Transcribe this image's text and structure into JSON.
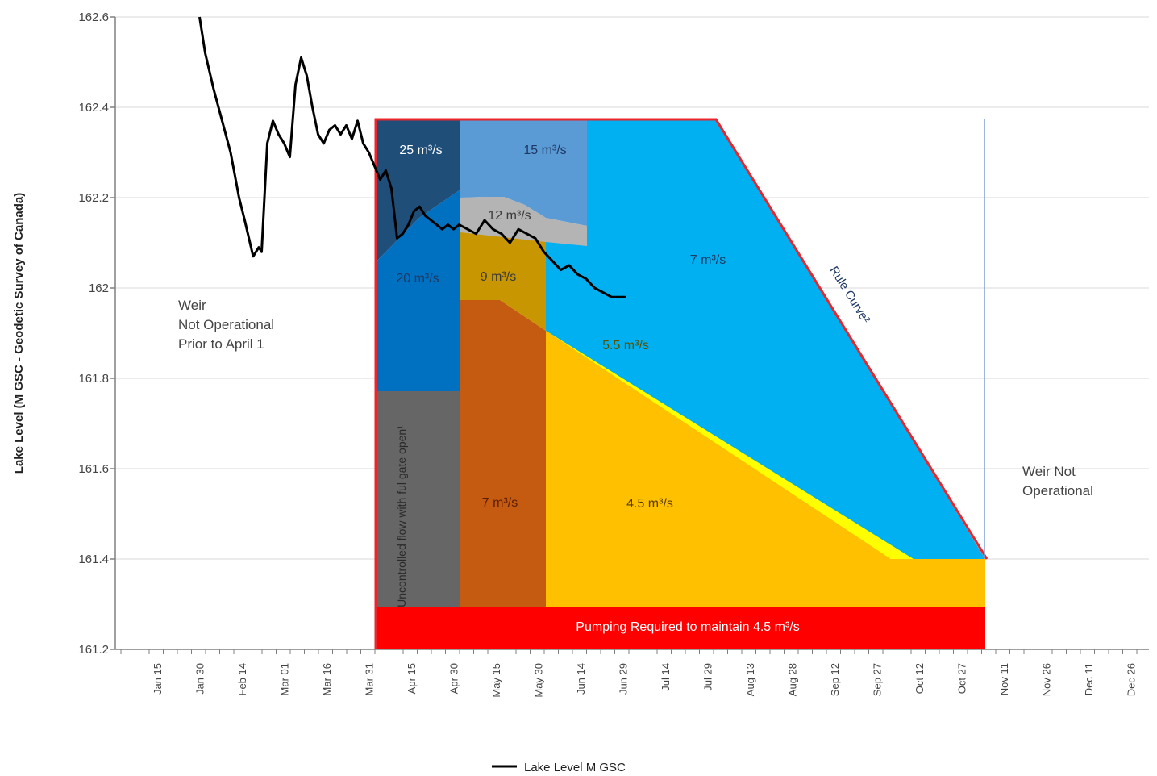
{
  "chart_data": {
    "type": "line",
    "ylabel": "Lake Level (M GSC - Geodetic Survey of Canada)",
    "xlabel": "",
    "ylim": [
      161.2,
      162.6
    ],
    "y_ticks": [
      "161.2",
      "161.4",
      "161.6",
      "161.8",
      "162",
      "162.2",
      "162.4",
      "162.6"
    ],
    "grid": "horizontal",
    "legend_position": "bottom-center",
    "x_tick_labels": [
      "Jan 15",
      "Jan 30",
      "Feb 14",
      "Mar 01",
      "Mar 16",
      "Mar 31",
      "Apr 15",
      "Apr 30",
      "May 15",
      "May 30",
      "Jun 14",
      "Jun 29",
      "Jul 14",
      "Jul 29",
      "Aug 13",
      "Aug 28",
      "Sep 12",
      "Sep 27",
      "Oct 12",
      "Oct 27",
      "Nov 11",
      "Nov 26",
      "Dec 11",
      "Dec 26"
    ],
    "series": [
      {
        "name": "Lake Level M GSC",
        "color": "#000000",
        "x": [
          "Jan 30",
          "Feb 01",
          "Feb 04",
          "Feb 07",
          "Feb 10",
          "Feb 13",
          "Feb 15",
          "Feb 18",
          "Feb 20",
          "Feb 21",
          "Feb 22",
          "Feb 23",
          "Feb 25",
          "Feb 27",
          "Mar 01",
          "Mar 03",
          "Mar 05",
          "Mar 07",
          "Mar 09",
          "Mar 11",
          "Mar 13",
          "Mar 15",
          "Mar 17",
          "Mar 19",
          "Mar 21",
          "Mar 23",
          "Mar 25",
          "Mar 27",
          "Mar 29",
          "Mar 31",
          "Apr 02",
          "Apr 04",
          "Apr 06",
          "Apr 08",
          "Apr 10",
          "Apr 12",
          "Apr 14",
          "Apr 16",
          "Apr 18",
          "Apr 20",
          "Apr 22",
          "Apr 24",
          "Apr 26",
          "Apr 28",
          "Apr 30",
          "May 02",
          "May 05",
          "May 08",
          "May 11",
          "May 14",
          "May 17",
          "May 20",
          "May 23",
          "May 26",
          "May 29",
          "Jun 01",
          "Jun 04",
          "Jun 07",
          "Jun 10",
          "Jun 13",
          "Jun 16",
          "Jun 19",
          "Jun 22",
          "Jun 25",
          "Jun 28",
          "Jun 30"
        ],
        "y": [
          162.6,
          162.52,
          162.44,
          162.37,
          162.3,
          162.2,
          162.15,
          162.07,
          162.09,
          162.08,
          162.2,
          162.32,
          162.37,
          162.34,
          162.32,
          162.29,
          162.45,
          162.51,
          162.47,
          162.4,
          162.34,
          162.32,
          162.35,
          162.36,
          162.34,
          162.36,
          162.33,
          162.37,
          162.32,
          162.3,
          162.27,
          162.24,
          162.26,
          162.22,
          162.11,
          162.12,
          162.14,
          162.17,
          162.18,
          162.16,
          162.15,
          162.14,
          162.13,
          162.14,
          162.13,
          162.14,
          162.13,
          162.12,
          162.15,
          162.13,
          162.12,
          162.1,
          162.13,
          162.12,
          162.11,
          162.08,
          162.06,
          162.04,
          162.05,
          162.03,
          162.02,
          162.0,
          161.99,
          161.98,
          161.98,
          161.98
        ]
      }
    ],
    "zones": [
      {
        "label": "25 m³/s",
        "color": "#1f4e79"
      },
      {
        "label": "20 m³/s",
        "color": "#0070c0"
      },
      {
        "label": "Uncontrolled flow with ful gate open¹",
        "color": "#666666"
      },
      {
        "label": "15 m³/s",
        "color": "#5b9bd5"
      },
      {
        "label": "12 m³/s",
        "color": "#b4b4b4"
      },
      {
        "label": "9 m³/s",
        "color": "#c89600"
      },
      {
        "label": "7 m³/s",
        "color": "#c55a11",
        "id": "orange"
      },
      {
        "label": "7 m³/s",
        "color": "#00b0f0",
        "id": "blue"
      },
      {
        "label": "5.5 m³/s",
        "color": "#ffff00"
      },
      {
        "label": "4.5 m³/s",
        "color": "#ffc000"
      },
      {
        "label": "Pumping Required to maintain 4.5 m³/s",
        "color": "#ff0000"
      }
    ],
    "annotations": {
      "rule_curve": "Rule Curve²",
      "rule_curve_color": "#e8262b",
      "weir_prior_lines": [
        "Weir",
        "Not Operational",
        "Prior to April 1"
      ],
      "weir_not_lines": [
        "Weir Not",
        "Operational"
      ]
    }
  }
}
